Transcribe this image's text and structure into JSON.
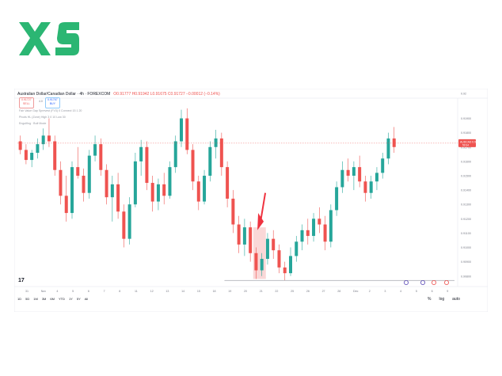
{
  "brand": {
    "logo": "XS",
    "color": "#2bb673"
  },
  "header": {
    "symbol": "Australian Dollar/Canadian Dollar · 4h · FOREXCOM",
    "ohlc": "O0.91777 H0.91942 L0.91675 C0.91727 −0.00012 (−0.14%)"
  },
  "orders": {
    "sell_price": "0.91727",
    "sell_label": "SELL",
    "spread": "4.0",
    "buy_price": "0.91767",
    "buy_label": "BUY"
  },
  "indicators": [
    "Fair Value Gap Sprevest (FV3) 0  Connect 15  1 20",
    "Pivots HL (Zone) High 3 0  10  Low 30",
    "Engulfing · Bull·Mode"
  ],
  "colors": {
    "up": "#26a69a",
    "down": "#ef5350",
    "arrow": "#ef3340",
    "fvg": "#f8c6c6",
    "line": "#787b86"
  },
  "price_tag": {
    "symbol": "AUDCAD",
    "value": "0.91727",
    "sub": "59:34"
  },
  "chart_data": {
    "type": "candlestick",
    "x_ticks": [
      "31",
      "Nov",
      "4",
      "5",
      "6",
      "7",
      "8",
      "11",
      "12",
      "13",
      "14",
      "15",
      "18",
      "19",
      "20",
      "21",
      "22",
      "25",
      "26",
      "27",
      "28",
      "Dec",
      "2",
      "3",
      "4",
      "5",
      "6",
      "9"
    ],
    "y_ticks": [
      "0.92",
      "0.91900",
      "0.91800",
      "0.91700",
      "0.91600",
      "0.91500",
      "0.91400",
      "0.91300",
      "0.91200",
      "0.91100",
      "0.91000",
      "0.90900",
      "0.90800"
    ],
    "ylim": [
      0.9076,
      0.9203
    ],
    "current_price": 0.91727,
    "candles": [
      [
        0.9174,
        0.9178,
        0.9165,
        0.9168
      ],
      [
        0.9168,
        0.9172,
        0.9158,
        0.9161
      ],
      [
        0.9161,
        0.9168,
        0.9156,
        0.9166
      ],
      [
        0.9166,
        0.9176,
        0.9162,
        0.9172
      ],
      [
        0.9172,
        0.9183,
        0.9168,
        0.9178
      ],
      [
        0.9178,
        0.919,
        0.917,
        0.9174
      ],
      [
        0.9174,
        0.9178,
        0.915,
        0.9154
      ],
      [
        0.9154,
        0.916,
        0.913,
        0.9136
      ],
      [
        0.9136,
        0.915,
        0.9118,
        0.9124
      ],
      [
        0.9124,
        0.916,
        0.912,
        0.9156
      ],
      [
        0.9156,
        0.917,
        0.9148,
        0.915
      ],
      [
        0.915,
        0.9155,
        0.9132,
        0.9138
      ],
      [
        0.9138,
        0.9168,
        0.9134,
        0.9164
      ],
      [
        0.9164,
        0.9178,
        0.916,
        0.9172
      ],
      [
        0.9172,
        0.9176,
        0.915,
        0.9154
      ],
      [
        0.9154,
        0.9158,
        0.913,
        0.9135
      ],
      [
        0.9135,
        0.915,
        0.9118,
        0.9144
      ],
      [
        0.9144,
        0.9152,
        0.912,
        0.9125
      ],
      [
        0.9125,
        0.913,
        0.91,
        0.9106
      ],
      [
        0.9106,
        0.9135,
        0.9102,
        0.913
      ],
      [
        0.913,
        0.9166,
        0.9128,
        0.916
      ],
      [
        0.916,
        0.9175,
        0.915,
        0.917
      ],
      [
        0.917,
        0.9174,
        0.914,
        0.9145
      ],
      [
        0.9145,
        0.915,
        0.9125,
        0.9132
      ],
      [
        0.9132,
        0.9148,
        0.9126,
        0.9144
      ],
      [
        0.9144,
        0.9152,
        0.913,
        0.9136
      ],
      [
        0.9136,
        0.916,
        0.9134,
        0.9156
      ],
      [
        0.9156,
        0.9178,
        0.9152,
        0.9174
      ],
      [
        0.9174,
        0.9196,
        0.917,
        0.919
      ],
      [
        0.919,
        0.9197,
        0.9165,
        0.9168
      ],
      [
        0.9168,
        0.9172,
        0.914,
        0.9146
      ],
      [
        0.9146,
        0.915,
        0.9126,
        0.9132
      ],
      [
        0.9132,
        0.9154,
        0.913,
        0.915
      ],
      [
        0.915,
        0.9174,
        0.9146,
        0.917
      ],
      [
        0.917,
        0.9182,
        0.9162,
        0.9176
      ],
      [
        0.9176,
        0.918,
        0.915,
        0.9156
      ],
      [
        0.9156,
        0.916,
        0.9128,
        0.9134
      ],
      [
        0.9134,
        0.914,
        0.911,
        0.9116
      ],
      [
        0.9116,
        0.9122,
        0.9096,
        0.9102
      ],
      [
        0.9102,
        0.912,
        0.9094,
        0.9114
      ],
      [
        0.9114,
        0.9118,
        0.909,
        0.9096
      ],
      [
        0.9096,
        0.91,
        0.9078,
        0.9084
      ],
      [
        0.9084,
        0.9096,
        0.908,
        0.9092
      ],
      [
        0.9092,
        0.911,
        0.9088,
        0.9106
      ],
      [
        0.9106,
        0.9112,
        0.9092,
        0.9098
      ],
      [
        0.9098,
        0.9102,
        0.9082,
        0.9086
      ],
      [
        0.9086,
        0.909,
        0.9077,
        0.9082
      ],
      [
        0.9082,
        0.91,
        0.908,
        0.9094
      ],
      [
        0.9094,
        0.9108,
        0.909,
        0.9104
      ],
      [
        0.9104,
        0.9116,
        0.9098,
        0.9112
      ],
      [
        0.9112,
        0.912,
        0.9102,
        0.9108
      ],
      [
        0.9108,
        0.9124,
        0.9104,
        0.912
      ],
      [
        0.912,
        0.9128,
        0.911,
        0.9116
      ],
      [
        0.9116,
        0.9122,
        0.9098,
        0.9104
      ],
      [
        0.9104,
        0.913,
        0.91,
        0.9126
      ],
      [
        0.9126,
        0.9146,
        0.9122,
        0.9142
      ],
      [
        0.9142,
        0.916,
        0.9138,
        0.9154
      ],
      [
        0.9154,
        0.9162,
        0.9146,
        0.915
      ],
      [
        0.915,
        0.916,
        0.914,
        0.9156
      ],
      [
        0.9156,
        0.9164,
        0.9142,
        0.9146
      ],
      [
        0.9146,
        0.915,
        0.9132,
        0.9138
      ],
      [
        0.9138,
        0.915,
        0.9134,
        0.9146
      ],
      [
        0.9146,
        0.9156,
        0.914,
        0.9152
      ],
      [
        0.9152,
        0.9166,
        0.9148,
        0.9162
      ],
      [
        0.9162,
        0.918,
        0.9158,
        0.9176
      ],
      [
        0.9176,
        0.9184,
        0.9166,
        0.917
      ]
    ]
  },
  "toolbar": [
    "1D",
    "5D",
    "1M",
    "3M",
    "6M",
    "YTD",
    "1Y",
    "5Y",
    "All"
  ],
  "tv_mark": "17",
  "right_tools": [
    "%",
    "log",
    "auto"
  ]
}
